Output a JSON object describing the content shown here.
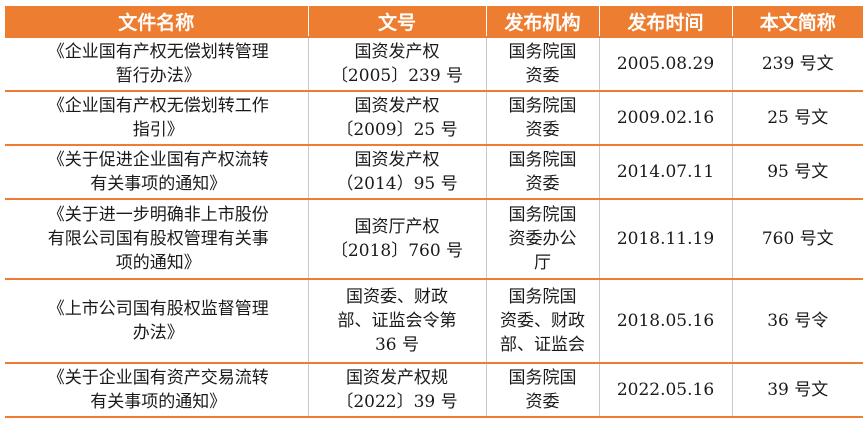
{
  "table": {
    "headers": [
      "文件名称",
      "文号",
      "发布机构",
      "发布时间",
      "本文简称"
    ],
    "rows": [
      {
        "name": "《企业国有产权无偿划转管理\n暂行办法》",
        "doc_no": "国资发产权\n〔2005〕239 号",
        "issuer": "国务院国\n资委",
        "date": "2005.08.29",
        "short": "239 号文"
      },
      {
        "name": "《企业国有产权无偿划转工作\n指引》",
        "doc_no": "国资发产权\n〔2009〕25 号",
        "issuer": "国务院国\n资委",
        "date": "2009.02.16",
        "short": "25 号文"
      },
      {
        "name": "《关于促进企业国有产权流转\n有关事项的通知》",
        "doc_no": "国资发产权\n（2014）95 号",
        "issuer": "国务院国\n资委",
        "date": "2014.07.11",
        "short": "95 号文"
      },
      {
        "name": "《关于进一步明确非上市股份\n有限公司国有股权管理有关事\n项的通知》",
        "doc_no": "国资厅产权\n〔2018〕760 号",
        "issuer": "国务院国\n资委办公\n厅",
        "date": "2018.11.19",
        "short": "760 号文"
      },
      {
        "name": "《上市公司国有股权监督管理\n办法》",
        "doc_no": "国资委、财政\n部、证监会令第\n36 号",
        "issuer": "国务院国\n资委、财政\n部、证监会",
        "date": "2018.05.16",
        "short": "36 号令"
      },
      {
        "name": "《关于企业国有资产交易流转\n有关事项的通知》",
        "doc_no": "国资发产权规\n〔2022〕39 号",
        "issuer": "国务院国\n资委",
        "date": "2022.05.16",
        "short": "39 号文"
      }
    ]
  },
  "colors": {
    "header_bg": "#ed7d31",
    "header_text": "#ffffff",
    "row_separator": "#ed7d31"
  }
}
